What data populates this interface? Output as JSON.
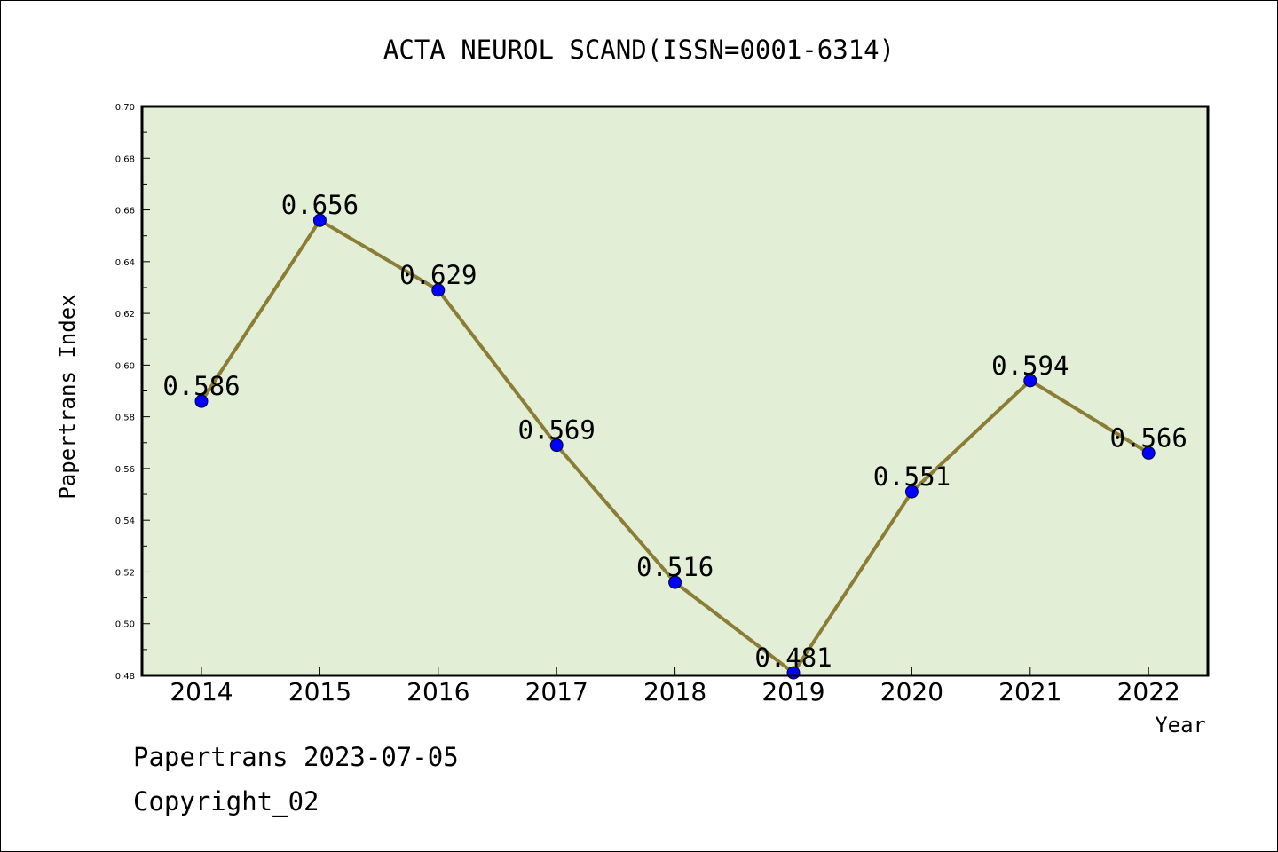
{
  "chart_data": {
    "type": "line",
    "title": "ACTA NEUROL SCAND(ISSN=0001-6314)",
    "xlabel": "Year",
    "ylabel": "Papertrans Index",
    "categories": [
      "2014",
      "2015",
      "2016",
      "2017",
      "2018",
      "2019",
      "2020",
      "2021",
      "2022"
    ],
    "series": [
      {
        "values": [
          0.586,
          0.656,
          0.629,
          0.569,
          0.516,
          0.481,
          0.551,
          0.594,
          0.566
        ],
        "data_labels": [
          "0.586",
          "0.656",
          "0.629",
          "0.569",
          "0.516",
          "0.481",
          "0.551",
          "0.594",
          "0.566"
        ],
        "line_color": "#8b7d36",
        "marker_color": "#0000ff"
      }
    ],
    "ylim": [
      0.48,
      0.7
    ],
    "yticks": [
      "0.48",
      "0.50",
      "0.52",
      "0.54",
      "0.56",
      "0.58",
      "0.60",
      "0.62",
      "0.64",
      "0.66",
      "0.68",
      "0.70"
    ],
    "plot_background": "#e2efd6",
    "grid": false,
    "legend": "none"
  },
  "footer": {
    "source": "Papertrans 2023-07-05",
    "copyright": "Copyright_02"
  }
}
